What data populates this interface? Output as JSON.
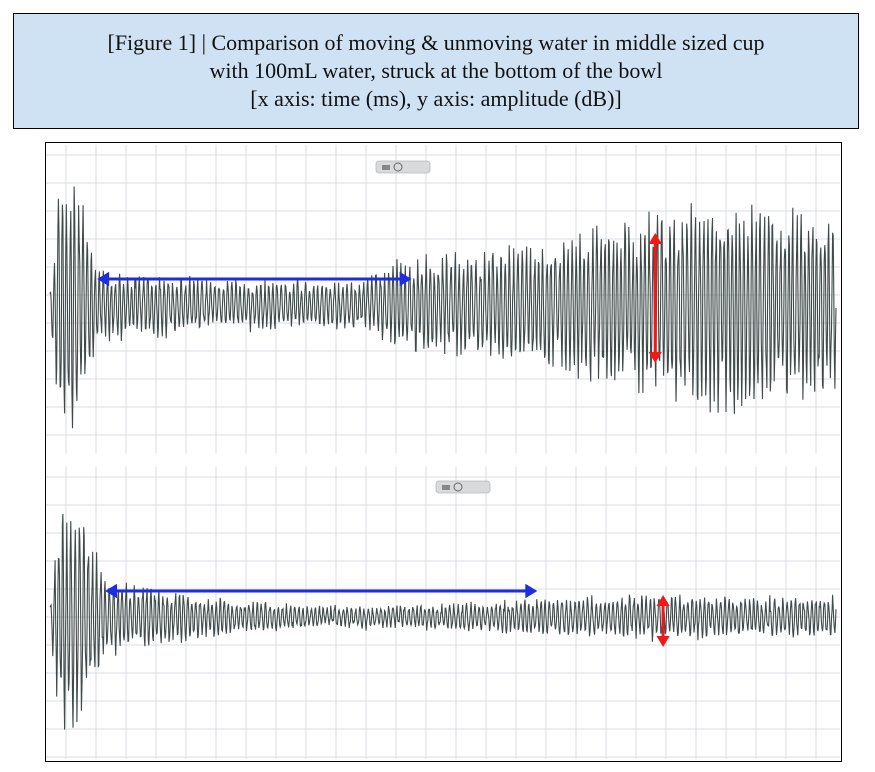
{
  "figure": {
    "caption_lines": [
      "[Figure 1] | Comparison of moving & unmoving water in middle sized cup",
      "with 100mL water, struck at the bottom of the bowl",
      "[x axis: time (ms), y axis: amplitude (dB)]"
    ]
  },
  "colors": {
    "caption_bg": "#cfe2f3",
    "grid_line": "#d8dde6",
    "waveform": "#3f4a4a",
    "blue_arrow": "#1f2de0",
    "red_arrow": "#f01818",
    "widget": "#d8dadc"
  },
  "chart_data": [
    {
      "type": "line",
      "xlabel": "time (ms)",
      "ylabel": "amplitude (dB)",
      "grid": true,
      "waveform": {
        "description_levels": "envelope of waveform amplitude, normalized 0-1 of plot half-height",
        "envelope": [
          {
            "t": 0.0,
            "a": 0.1
          },
          {
            "t": 0.015,
            "a": 0.95
          },
          {
            "t": 0.035,
            "a": 0.8
          },
          {
            "t": 0.06,
            "a": 0.25
          },
          {
            "t": 0.2,
            "a": 0.17
          },
          {
            "t": 0.35,
            "a": 0.16
          },
          {
            "t": 0.4,
            "a": 0.18
          },
          {
            "t": 0.45,
            "a": 0.32
          },
          {
            "t": 0.55,
            "a": 0.34
          },
          {
            "t": 0.65,
            "a": 0.45
          },
          {
            "t": 0.75,
            "a": 0.58
          },
          {
            "t": 0.85,
            "a": 0.72
          },
          {
            "t": 1.0,
            "a": 0.6
          }
        ],
        "cycles": 190,
        "seed": 7
      },
      "blue_arrow": {
        "x_from": 0.06,
        "x_to": 0.46
      },
      "red_arrow": {
        "x": 0.77
      }
    },
    {
      "type": "line",
      "xlabel": "time (ms)",
      "ylabel": "amplitude (dB)",
      "grid": true,
      "waveform": {
        "description_levels": "envelope of waveform amplitude, normalized 0-1 of plot half-height",
        "envelope": [
          {
            "t": 0.0,
            "a": 0.12
          },
          {
            "t": 0.015,
            "a": 0.95
          },
          {
            "t": 0.04,
            "a": 0.7
          },
          {
            "t": 0.07,
            "a": 0.28
          },
          {
            "t": 0.2,
            "a": 0.14
          },
          {
            "t": 0.35,
            "a": 0.07
          },
          {
            "t": 0.5,
            "a": 0.09
          },
          {
            "t": 0.6,
            "a": 0.12
          },
          {
            "t": 0.7,
            "a": 0.14
          },
          {
            "t": 0.78,
            "a": 0.16
          },
          {
            "t": 0.9,
            "a": 0.14
          },
          {
            "t": 1.0,
            "a": 0.14
          }
        ],
        "cycles": 190,
        "seed": 13
      },
      "blue_arrow": {
        "x_from": 0.07,
        "x_to": 0.62
      },
      "red_arrow": {
        "x": 0.78
      }
    }
  ]
}
